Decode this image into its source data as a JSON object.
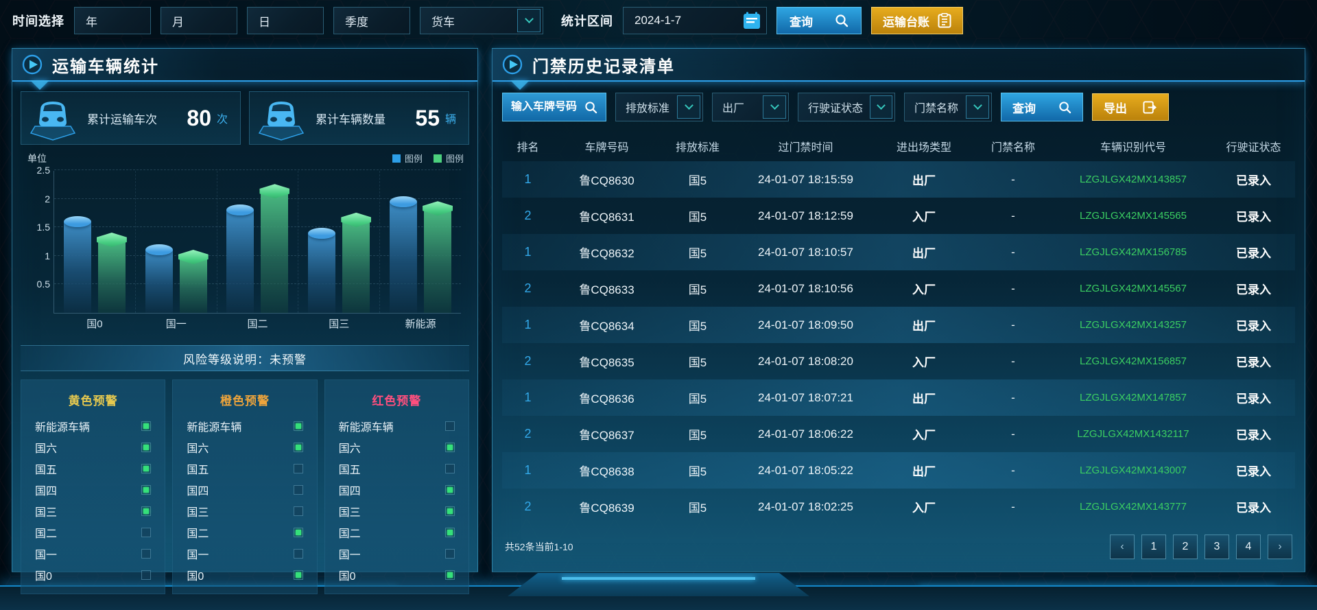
{
  "topbar": {
    "time_label": "时间选择",
    "periods": [
      {
        "label": "年"
      },
      {
        "label": "月"
      },
      {
        "label": "日"
      },
      {
        "label": "季度"
      }
    ],
    "vehicle_select": "货车",
    "range_label": "统计区间",
    "date_value": "2024-1-7",
    "query_label": "查询",
    "ledger_label": "运输台账"
  },
  "left": {
    "title": "运输车辆统计",
    "stats": [
      {
        "label": "累计运输车次",
        "value": "80",
        "unit": "次"
      },
      {
        "label": "累计车辆数量",
        "value": "55",
        "unit": "辆"
      }
    ],
    "risk_note": "风险等级说明：未预警",
    "warnings": [
      {
        "title": "黄色预警",
        "color": "#e6c94f",
        "items": [
          {
            "label": "新能源车辆",
            "on": true
          },
          {
            "label": "国六",
            "on": true
          },
          {
            "label": "国五",
            "on": true
          },
          {
            "label": "国四",
            "on": true
          },
          {
            "label": "国三",
            "on": true
          },
          {
            "label": "国二",
            "on": false
          },
          {
            "label": "国一",
            "on": false
          },
          {
            "label": "国0",
            "on": false
          }
        ]
      },
      {
        "title": "橙色预警",
        "color": "#eda43c",
        "items": [
          {
            "label": "新能源车辆",
            "on": true
          },
          {
            "label": "国六",
            "on": true
          },
          {
            "label": "国五",
            "on": false
          },
          {
            "label": "国四",
            "on": false
          },
          {
            "label": "国三",
            "on": false
          },
          {
            "label": "国二",
            "on": true
          },
          {
            "label": "国一",
            "on": false
          },
          {
            "label": "国0",
            "on": true
          }
        ]
      },
      {
        "title": "红色预警",
        "color": "#ff4f7e",
        "items": [
          {
            "label": "新能源车辆",
            "on": false
          },
          {
            "label": "国六",
            "on": true
          },
          {
            "label": "国五",
            "on": false
          },
          {
            "label": "国四",
            "on": true
          },
          {
            "label": "国三",
            "on": true
          },
          {
            "label": "国二",
            "on": true
          },
          {
            "label": "国一",
            "on": false
          },
          {
            "label": "国0",
            "on": true
          }
        ]
      }
    ]
  },
  "chart_data": {
    "type": "bar",
    "title": "",
    "unit_label": "单位",
    "categories": [
      "国0",
      "国一",
      "国二",
      "国三",
      "新能源"
    ],
    "series": [
      {
        "name": "图例",
        "color": "#2d9fe8",
        "values": [
          1.6,
          1.1,
          1.8,
          1.4,
          1.95
        ]
      },
      {
        "name": "图例",
        "color": "#4cd07d",
        "values": [
          1.25,
          0.95,
          2.1,
          1.6,
          1.8
        ]
      }
    ],
    "xlabel": "",
    "ylabel": "单位",
    "ylim": [
      0,
      2.5
    ],
    "yticks": [
      0.5,
      1,
      1.5,
      2,
      2.5
    ],
    "grid": true,
    "legend_position": "top-right"
  },
  "right": {
    "title": "门禁历史记录清单",
    "filters": {
      "plate_placeholder": "输入车牌号码",
      "dropdowns": [
        {
          "label": "排放标准"
        },
        {
          "label": "出厂"
        },
        {
          "label": "行驶证状态"
        },
        {
          "label": "门禁名称"
        }
      ],
      "query_label": "查询",
      "export_label": "导出"
    },
    "table": {
      "headers": [
        "排名",
        "车牌号码",
        "排放标准",
        "过门禁时间",
        "进出场类型",
        "门禁名称",
        "车辆识别代号",
        "行驶证状态"
      ],
      "rows": [
        {
          "rank": "1",
          "plate": "鲁CQ8630",
          "standard": "国5",
          "time": "24-01-07 18:15:59",
          "type": "出厂",
          "gate": "-",
          "vin": "LZGJLGX42MX143857",
          "status": "已录入",
          "highlight": true
        },
        {
          "rank": "2",
          "plate": "鲁CQ8631",
          "standard": "国5",
          "time": "24-01-07 18:12:59",
          "type": "入厂",
          "gate": "-",
          "vin": "LZGJLGX42MX145565",
          "status": "已录入",
          "highlight": false
        },
        {
          "rank": "1",
          "plate": "鲁CQ8632",
          "standard": "国5",
          "time": "24-01-07 18:10:57",
          "type": "出厂",
          "gate": "-",
          "vin": "LZGJLGX42MX156785",
          "status": "已录入",
          "highlight": true
        },
        {
          "rank": "2",
          "plate": "鲁CQ8633",
          "standard": "国5",
          "time": "24-01-07 18:10:56",
          "type": "入厂",
          "gate": "-",
          "vin": "LZGJLGX42MX145567",
          "status": "已录入",
          "highlight": false
        },
        {
          "rank": "1",
          "plate": "鲁CQ8634",
          "standard": "国5",
          "time": "24-01-07 18:09:50",
          "type": "出厂",
          "gate": "-",
          "vin": "LZGJLGX42MX143257",
          "status": "已录入",
          "highlight": true
        },
        {
          "rank": "2",
          "plate": "鲁CQ8635",
          "standard": "国5",
          "time": "24-01-07 18:08:20",
          "type": "入厂",
          "gate": "-",
          "vin": "LZGJLGX42MX156857",
          "status": "已录入",
          "highlight": false
        },
        {
          "rank": "1",
          "plate": "鲁CQ8636",
          "standard": "国5",
          "time": "24-01-07 18:07:21",
          "type": "出厂",
          "gate": "-",
          "vin": "LZGJLGX42MX147857",
          "status": "已录入",
          "highlight": true
        },
        {
          "rank": "2",
          "plate": "鲁CQ8637",
          "standard": "国5",
          "time": "24-01-07 18:06:22",
          "type": "入厂",
          "gate": "-",
          "vin": "LZGJLGX42MX1432117",
          "status": "已录入",
          "highlight": false
        },
        {
          "rank": "1",
          "plate": "鲁CQ8638",
          "standard": "国5",
          "time": "24-01-07 18:05:22",
          "type": "出厂",
          "gate": "-",
          "vin": "LZGJLGX42MX143007",
          "status": "已录入",
          "highlight": true
        },
        {
          "rank": "2",
          "plate": "鲁CQ8639",
          "standard": "国5",
          "time": "24-01-07 18:02:25",
          "type": "入厂",
          "gate": "-",
          "vin": "LZGJLGX42MX143777",
          "status": "已录入",
          "highlight": false
        }
      ]
    },
    "pagination": {
      "summary": "共52条当前1-10",
      "prev": "‹",
      "pages": [
        "1",
        "2",
        "3",
        "4"
      ],
      "next": "›"
    }
  }
}
